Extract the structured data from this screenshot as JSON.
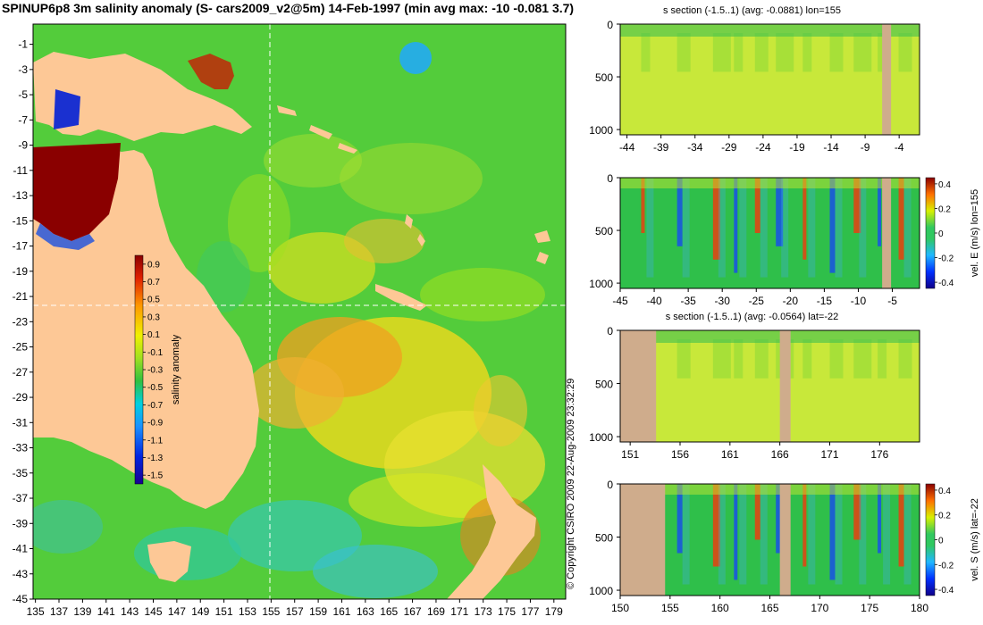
{
  "map": {
    "title": "SPINUP6p8 3m salinity anomaly (S- cars2009_v2@5m) 14-Feb-1997 (min avg max: -10 -0.081 3.7)",
    "lon_ticks": [
      135,
      137,
      139,
      141,
      143,
      145,
      147,
      149,
      151,
      153,
      155,
      157,
      159,
      161,
      163,
      165,
      167,
      169,
      171,
      173,
      175,
      177,
      179
    ],
    "lat_ticks": [
      -1,
      -3,
      -5,
      -7,
      -9,
      -11,
      -13,
      -15,
      -17,
      -19,
      -21,
      -23,
      -25,
      -27,
      -29,
      -31,
      -33,
      -35,
      -37,
      -39,
      -41,
      -43,
      -45
    ],
    "lon_range": [
      134.8,
      180
    ],
    "lat_range": [
      0.6,
      -45
    ],
    "section_lon": 155,
    "section_lat": -22,
    "colorbar": {
      "label": "salinity anomaly",
      "ticks": [
        "0.9",
        "0.7",
        "0.5",
        "0.3",
        "0.1",
        "-0.1",
        "-0.3",
        "-0.5",
        "-0.7",
        "-0.9",
        "-1.1",
        "-1.3",
        "-1.5"
      ],
      "range": [
        -1.6,
        1.0
      ]
    },
    "copyright": "© Copyright CSIRO 2009   22-Aug-2009 23:32:29"
  },
  "panels": [
    {
      "id": "s-section-lon",
      "title": "s section (-1.5..1) (avg: -0.0881) lon=155",
      "x_ticks": [
        "-44",
        "-39",
        "-34",
        "-29",
        "-24",
        "-19",
        "-14",
        "-9",
        "-4"
      ],
      "x_range": [
        -45,
        -1
      ],
      "y_ticks": [
        "0",
        "500",
        "1000"
      ],
      "y_range": [
        0,
        1050
      ],
      "has_colorbar": false
    },
    {
      "id": "vel-e-lon",
      "title": "",
      "x_ticks": [
        "-45",
        "-40",
        "-35",
        "-30",
        "-25",
        "-20",
        "-15",
        "-10",
        "-5"
      ],
      "x_range": [
        -45,
        -1
      ],
      "y_ticks": [
        "0",
        "500",
        "1000"
      ],
      "y_range": [
        0,
        1050
      ],
      "has_colorbar": true,
      "colorbar_label": "vel. E (m/s) lon=155",
      "colorbar_ticks": [
        "0.4",
        "0.2",
        "0",
        "-0.2",
        "-0.4"
      ],
      "colorbar_range": [
        -0.45,
        0.45
      ]
    },
    {
      "id": "s-section-lat",
      "title": "s section (-1.5..1) (avg: -0.0564) lat=-22",
      "x_ticks": [
        "151",
        "156",
        "161",
        "166",
        "171",
        "176"
      ],
      "x_range": [
        150,
        180
      ],
      "y_ticks": [
        "0",
        "500",
        "1000"
      ],
      "y_range": [
        0,
        1050
      ],
      "has_colorbar": false
    },
    {
      "id": "vel-s-lat",
      "title": "",
      "x_ticks": [
        "150",
        "155",
        "160",
        "165",
        "170",
        "175",
        "180"
      ],
      "x_range": [
        150,
        180
      ],
      "y_ticks": [
        "0",
        "500",
        "1000"
      ],
      "y_range": [
        0,
        1050
      ],
      "has_colorbar": true,
      "colorbar_label": "vel. S (m/s) lat=-22",
      "colorbar_ticks": [
        "0.4",
        "0.2",
        "0",
        "-0.2",
        "-0.4"
      ],
      "colorbar_range": [
        -0.45,
        0.45
      ]
    }
  ],
  "colors": {
    "land": "#fdc896",
    "section_land": "#cfac8c",
    "water_base": "#53cc3b"
  }
}
